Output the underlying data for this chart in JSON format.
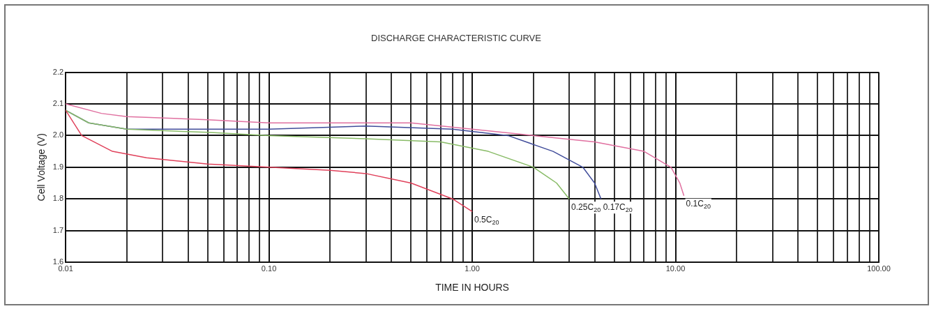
{
  "chart_data": {
    "type": "line",
    "title": "DISCHARGE CHARACTERISTIC CURVE",
    "xlabel": "TIME IN HOURS",
    "ylabel": "Cell Voltage (V)",
    "log": "x",
    "grid": true,
    "legend": false,
    "marker": "none",
    "line_style": "solid",
    "xlim": [
      0.01,
      100
    ],
    "ylim": [
      1.6,
      2.2
    ],
    "xticks": [
      {
        "value": 0.01,
        "label": "0.01"
      },
      {
        "value": 0.02,
        "label": null
      },
      {
        "value": 0.03,
        "label": null
      },
      {
        "value": 0.04,
        "label": null
      },
      {
        "value": 0.05,
        "label": null
      },
      {
        "value": 0.06,
        "label": null
      },
      {
        "value": 0.07,
        "label": null
      },
      {
        "value": 0.08,
        "label": null
      },
      {
        "value": 0.09,
        "label": null
      },
      {
        "value": 0.1,
        "label": "0.10"
      },
      {
        "value": 0.2,
        "label": null
      },
      {
        "value": 0.3,
        "label": null
      },
      {
        "value": 0.4,
        "label": null
      },
      {
        "value": 0.5,
        "label": null
      },
      {
        "value": 0.6,
        "label": null
      },
      {
        "value": 0.7,
        "label": null
      },
      {
        "value": 0.8,
        "label": null
      },
      {
        "value": 0.9,
        "label": null
      },
      {
        "value": 1,
        "label": "1.00"
      },
      {
        "value": 2,
        "label": null
      },
      {
        "value": 3,
        "label": null
      },
      {
        "value": 4,
        "label": null
      },
      {
        "value": 5,
        "label": null
      },
      {
        "value": 6,
        "label": null
      },
      {
        "value": 7,
        "label": null
      },
      {
        "value": 8,
        "label": null
      },
      {
        "value": 9,
        "label": null
      },
      {
        "value": 10,
        "label": "10.00"
      },
      {
        "value": 20,
        "label": null
      },
      {
        "value": 30,
        "label": null
      },
      {
        "value": 40,
        "label": null
      },
      {
        "value": 50,
        "label": null
      },
      {
        "value": 60,
        "label": null
      },
      {
        "value": 70,
        "label": null
      },
      {
        "value": 80,
        "label": null
      },
      {
        "value": 90,
        "label": null
      },
      {
        "value": 100,
        "label": "100.00"
      }
    ],
    "yticks": [
      1.6,
      1.7,
      1.8,
      1.9,
      {
        "value": 2,
        "label": "2.0"
      },
      2.1,
      2.2
    ],
    "series": [
      {
        "name": "0.5C$_{20}$",
        "color": "#e0405a",
        "x": [
          0.01,
          0.012,
          0.017,
          0.025,
          0.05,
          0.1,
          0.2,
          0.3,
          0.5,
          0.8,
          1.0
        ],
        "values": [
          2.08,
          2.0,
          1.95,
          1.93,
          1.91,
          1.9,
          1.89,
          1.88,
          1.85,
          1.8,
          1.76
        ]
      },
      {
        "name": "0.25C$_{20}$",
        "color": "#88bb66",
        "x": [
          0.01,
          0.013,
          0.02,
          0.05,
          0.1,
          0.3,
          0.7,
          1.2,
          2.0,
          2.6,
          3.0
        ],
        "values": [
          2.08,
          2.04,
          2.02,
          2.01,
          2.0,
          1.99,
          1.98,
          1.95,
          1.9,
          1.85,
          1.8
        ]
      },
      {
        "name": "0.17C$_{20}$",
        "color": "#404c9a",
        "x": [
          0.01,
          0.013,
          0.02,
          0.1,
          0.3,
          0.8,
          1.5,
          2.5,
          3.5,
          4.0,
          4.3
        ],
        "values": [
          2.08,
          2.04,
          2.02,
          2.02,
          2.03,
          2.02,
          2.0,
          1.95,
          1.9,
          1.85,
          1.8
        ]
      },
      {
        "name": "0.1C$_{20}$",
        "color": "#e070a0",
        "x": [
          0.01,
          0.015,
          0.02,
          0.05,
          0.1,
          0.5,
          1.0,
          2.0,
          4.0,
          7.0,
          9.5,
          10.5,
          11.0
        ],
        "values": [
          2.1,
          2.07,
          2.06,
          2.05,
          2.04,
          2.04,
          2.02,
          2.0,
          1.98,
          1.95,
          1.9,
          1.85,
          1.81
        ]
      }
    ]
  }
}
